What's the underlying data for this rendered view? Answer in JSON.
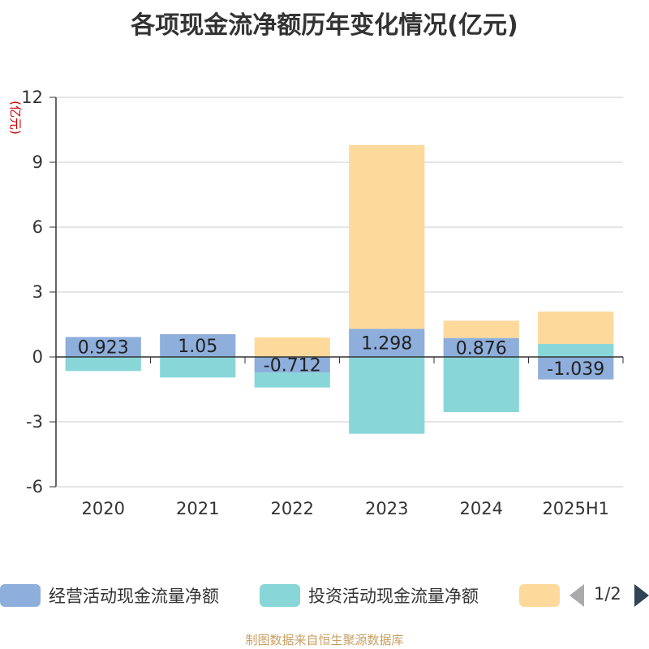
{
  "title": "各项现金流净额历年变化情况(亿元)",
  "source": "制图数据来自恒生聚源数据库",
  "legend_pager": "1/2",
  "chart_data": {
    "type": "bar",
    "stacked": true,
    "categories": [
      "2020",
      "2021",
      "2022",
      "2023",
      "2024",
      "2025H1"
    ],
    "ylabel": "(亿元)",
    "ylim": [
      -6,
      12
    ],
    "yticks": [
      12,
      9,
      6,
      3,
      0,
      -3,
      -6
    ],
    "grid": true,
    "legend_position": "bottom",
    "series": [
      {
        "name": "经营活动现金流量净额",
        "color": "#8eaedb",
        "values": [
          0.923,
          1.05,
          -0.712,
          1.298,
          0.876,
          -1.039
        ],
        "labels": [
          "0.923",
          "1.05",
          "-0.712",
          "1.298",
          "0.876",
          "-1.039"
        ]
      },
      {
        "name": "投资活动现金流量净额",
        "color": "#88d6d8",
        "values": [
          -0.65,
          -0.95,
          -0.7,
          -3.55,
          -2.55,
          0.6
        ]
      },
      {
        "name": "",
        "color": "#fdd99b",
        "values": [
          0,
          0,
          0.9,
          8.5,
          0.8,
          1.5
        ]
      }
    ]
  }
}
